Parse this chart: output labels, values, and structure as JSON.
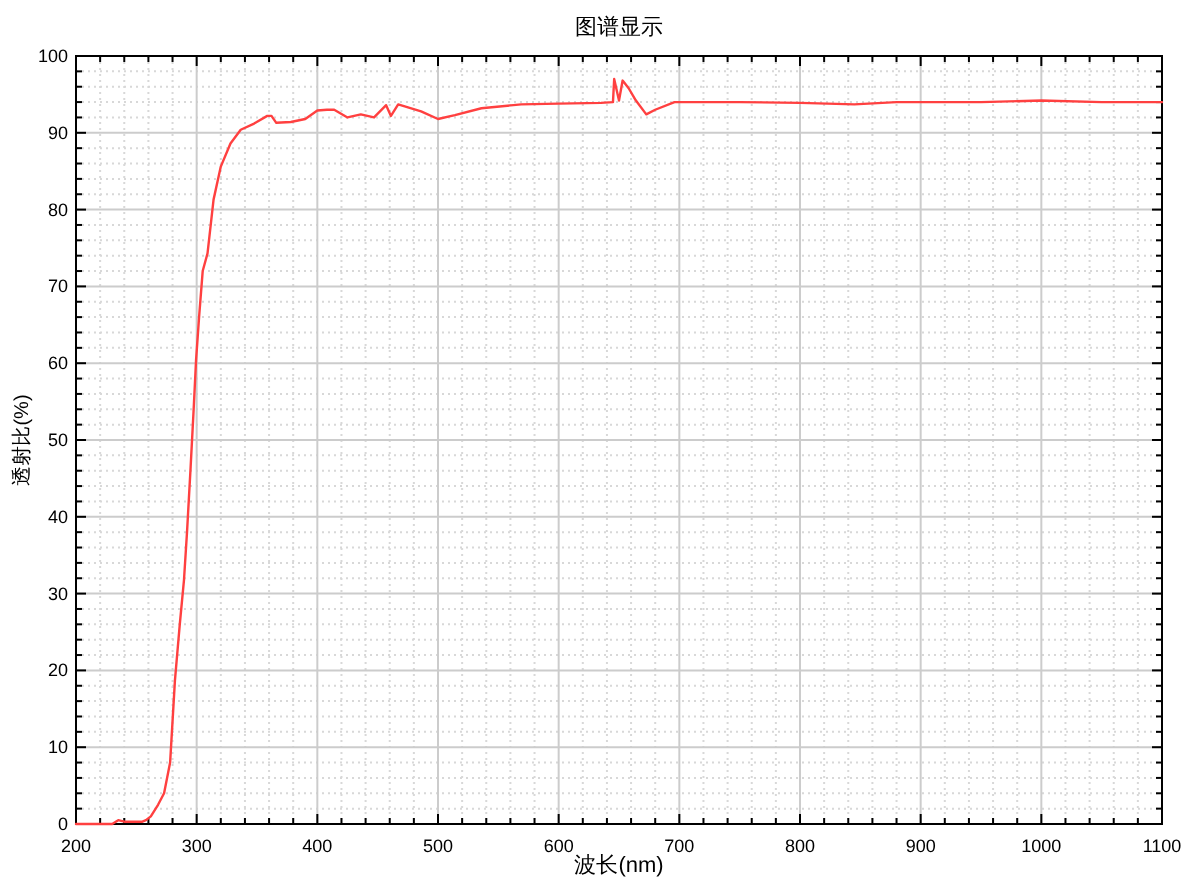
{
  "chart_data": {
    "type": "line",
    "title": "图谱显示",
    "xlabel": "波长(nm)",
    "ylabel": "透射比(%)",
    "x": [
      200,
      215,
      230,
      235,
      240,
      255,
      258,
      262,
      268,
      273,
      278,
      282,
      286,
      289.5,
      292,
      295,
      297.5,
      299.5,
      302,
      305,
      309,
      314,
      320,
      328,
      336.5,
      347.6,
      358.5,
      362,
      366,
      378,
      390,
      400,
      408,
      414,
      425,
      436,
      447,
      457,
      461,
      467,
      486,
      500,
      514,
      536,
      569,
      600,
      635,
      645,
      646,
      650,
      653,
      658,
      664,
      672.6,
      680,
      696,
      750,
      800,
      845,
      880,
      950,
      1000,
      1050,
      1100
    ],
    "series": [
      {
        "color": "#ff4040",
        "values": [
          0,
          0,
          0,
          0.5,
          0.3,
          0.3,
          0.5,
          1.0,
          2.5,
          4.0,
          8,
          18.7,
          26,
          31.8,
          38,
          46.5,
          54,
          60.4,
          66,
          72,
          74.3,
          81.3,
          85.6,
          88.6,
          90.4,
          91.2,
          92.2,
          92.2,
          91.3,
          91.4,
          91.8,
          92.9,
          93.0,
          93.0,
          92.0,
          92.4,
          92.0,
          93.6,
          92.2,
          93.7,
          92.8,
          91.8,
          92.3,
          93.2,
          93.7,
          93.8,
          93.9,
          94.0,
          97.0,
          94.2,
          96.8,
          95.8,
          94.2,
          92.4,
          93.0,
          94.0,
          94.0,
          93.9,
          93.7,
          94.0,
          94.0,
          94.2,
          94.0,
          94.0
        ]
      }
    ],
    "xlim": [
      200,
      1100
    ],
    "ylim": [
      0,
      100
    ],
    "xticks": [
      200,
      300,
      400,
      500,
      600,
      700,
      800,
      900,
      1000,
      1100
    ],
    "yticks": [
      0,
      10,
      20,
      30,
      40,
      50,
      60,
      70,
      80,
      90,
      100
    ],
    "grid": true,
    "line_style": "solid"
  }
}
